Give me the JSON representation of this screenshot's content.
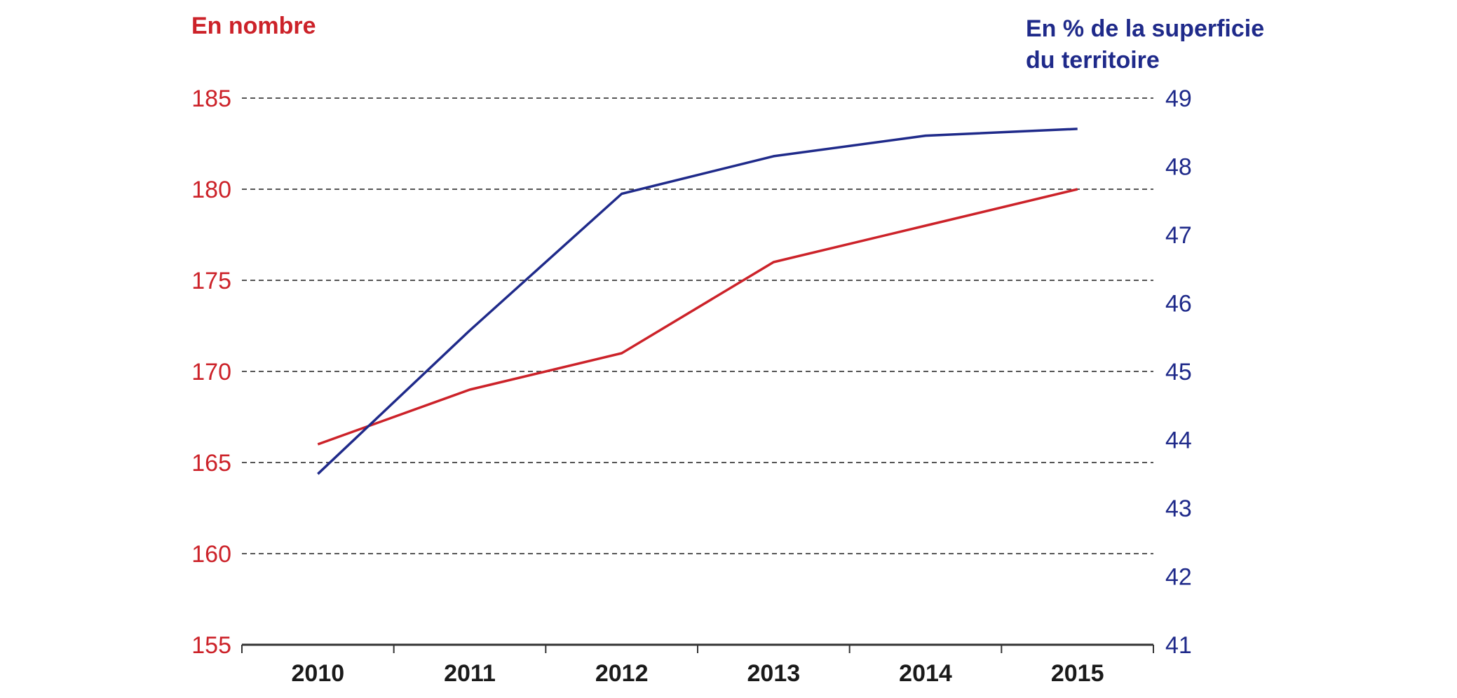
{
  "chart_data": {
    "type": "line",
    "left_axis_title": "En nombre",
    "right_axis_title_line1": "En % de la superficie",
    "right_axis_title_line2": "du territoire",
    "x": [
      "2010",
      "2011",
      "2012",
      "2013",
      "2014",
      "2015"
    ],
    "left_ticks": [
      "155",
      "160",
      "165",
      "170",
      "175",
      "180",
      "185"
    ],
    "right_ticks": [
      "41",
      "42",
      "43",
      "44",
      "45",
      "46",
      "47",
      "48",
      "49"
    ],
    "y_left_range": [
      155,
      185
    ],
    "y_right_range": [
      41,
      49
    ],
    "grid": "dashed horizontal at left-axis ticks",
    "series": [
      {
        "axis": "left",
        "color": "#cc2229",
        "values": [
          166,
          169,
          171,
          176,
          178,
          180
        ]
      },
      {
        "axis": "right",
        "color": "#1f2a8a",
        "values": [
          43.5,
          45.6,
          47.6,
          48.15,
          48.45,
          48.55
        ]
      }
    ],
    "colors": {
      "left": "#cc2229",
      "right": "#1f2a8a",
      "grid": "#555555",
      "axis": "#333333"
    }
  }
}
